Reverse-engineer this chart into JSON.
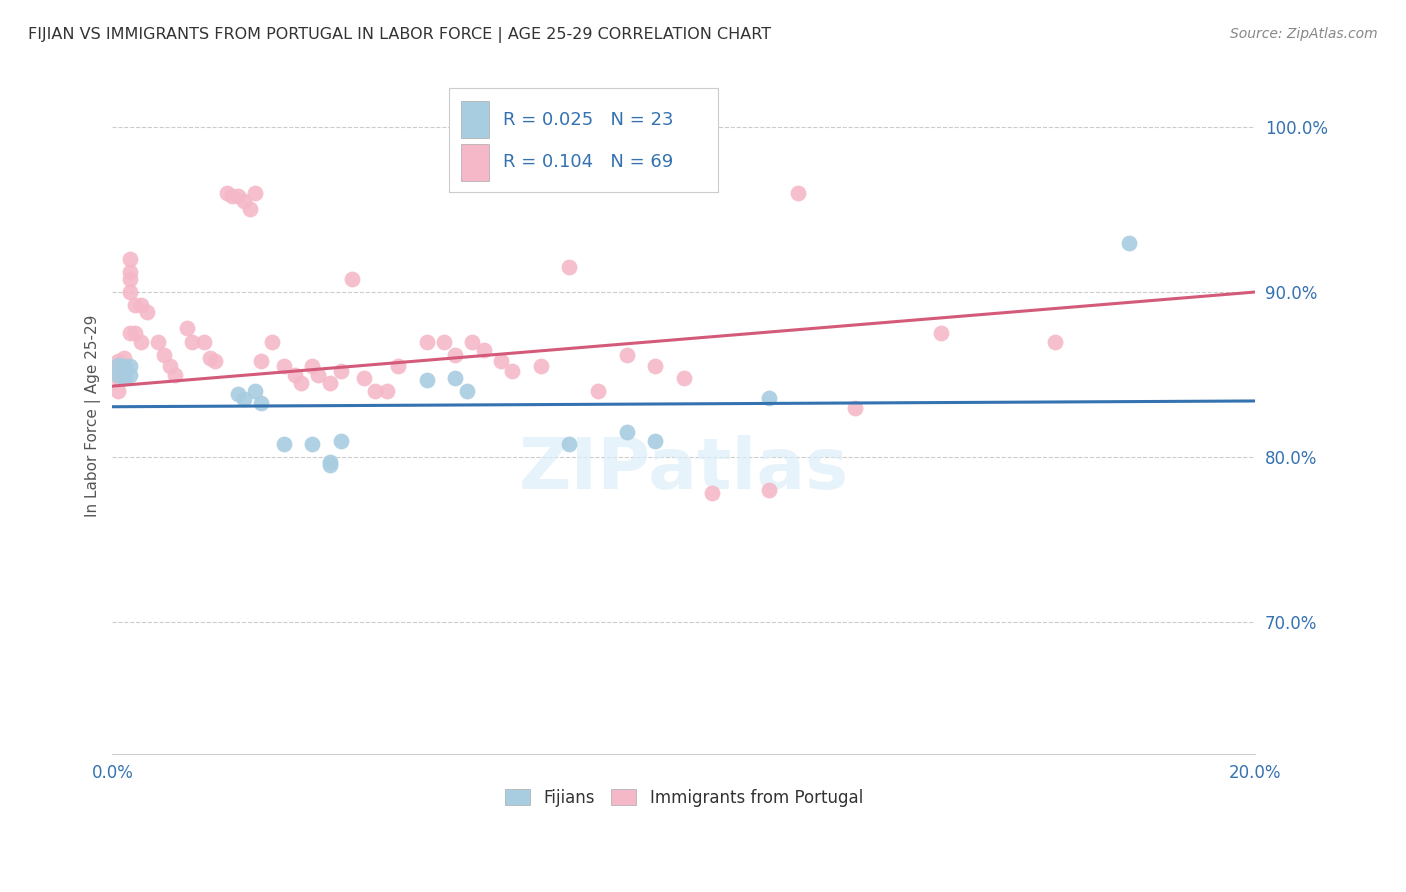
{
  "title": "FIJIAN VS IMMIGRANTS FROM PORTUGAL IN LABOR FORCE | AGE 25-29 CORRELATION CHART",
  "source": "Source: ZipAtlas.com",
  "ylabel": "In Labor Force | Age 25-29",
  "xlim": [
    0.0,
    0.2
  ],
  "ylim": [
    0.62,
    1.03
  ],
  "yticks": [
    0.7,
    0.8,
    0.9,
    1.0
  ],
  "ytick_labels": [
    "70.0%",
    "80.0%",
    "90.0%",
    "100.0%"
  ],
  "xticks": [
    0.0,
    0.02,
    0.04,
    0.06,
    0.08,
    0.1,
    0.12,
    0.14,
    0.16,
    0.18,
    0.2
  ],
  "xtick_labels": [
    "0.0%",
    "",
    "",
    "",
    "",
    "",
    "",
    "",
    "",
    "",
    "20.0%"
  ],
  "blue_R": 0.025,
  "pink_R": 0.104,
  "blue_N": 23,
  "pink_N": 69,
  "blue_color": "#a8cce0",
  "pink_color": "#f4b8c8",
  "blue_line_color": "#3572b0",
  "pink_line_color": "#d45a7a",
  "watermark": "ZIPatlas",
  "background_color": "#ffffff",
  "grid_color": "#cccccc",
  "title_color": "#333333",
  "axis_label_color": "#3572b0",
  "legend_label_color": "#3572b0",
  "blue_scatter_x": [
    0.001,
    0.001,
    0.002,
    0.002,
    0.003,
    0.003,
    0.022,
    0.023,
    0.025,
    0.026,
    0.03,
    0.035,
    0.038,
    0.038,
    0.04,
    0.055,
    0.06,
    0.062,
    0.08,
    0.09,
    0.095,
    0.115,
    0.178
  ],
  "blue_scatter_y": [
    0.856,
    0.85,
    0.855,
    0.848,
    0.855,
    0.85,
    0.838,
    0.835,
    0.84,
    0.833,
    0.808,
    0.808,
    0.797,
    0.795,
    0.81,
    0.847,
    0.848,
    0.84,
    0.808,
    0.815,
    0.81,
    0.836,
    0.93
  ],
  "pink_scatter_x": [
    0.001,
    0.001,
    0.001,
    0.001,
    0.001,
    0.001,
    0.001,
    0.002,
    0.002,
    0.002,
    0.002,
    0.003,
    0.003,
    0.003,
    0.003,
    0.003,
    0.004,
    0.004,
    0.005,
    0.005,
    0.006,
    0.008,
    0.009,
    0.01,
    0.011,
    0.013,
    0.014,
    0.016,
    0.017,
    0.018,
    0.02,
    0.021,
    0.022,
    0.023,
    0.024,
    0.025,
    0.026,
    0.028,
    0.03,
    0.032,
    0.033,
    0.035,
    0.036,
    0.038,
    0.04,
    0.042,
    0.044,
    0.046,
    0.048,
    0.05,
    0.055,
    0.058,
    0.06,
    0.063,
    0.065,
    0.068,
    0.07,
    0.075,
    0.08,
    0.085,
    0.09,
    0.095,
    0.1,
    0.105,
    0.115,
    0.12,
    0.13,
    0.145,
    0.165
  ],
  "pink_scatter_y": [
    0.858,
    0.855,
    0.855,
    0.852,
    0.85,
    0.848,
    0.84,
    0.86,
    0.855,
    0.852,
    0.848,
    0.92,
    0.912,
    0.908,
    0.9,
    0.875,
    0.892,
    0.875,
    0.892,
    0.87,
    0.888,
    0.87,
    0.862,
    0.855,
    0.85,
    0.878,
    0.87,
    0.87,
    0.86,
    0.858,
    0.96,
    0.958,
    0.958,
    0.955,
    0.95,
    0.96,
    0.858,
    0.87,
    0.855,
    0.85,
    0.845,
    0.855,
    0.85,
    0.845,
    0.852,
    0.908,
    0.848,
    0.84,
    0.84,
    0.855,
    0.87,
    0.87,
    0.862,
    0.87,
    0.865,
    0.858,
    0.852,
    0.855,
    0.915,
    0.84,
    0.862,
    0.855,
    0.848,
    0.778,
    0.78,
    0.96,
    0.83,
    0.875,
    0.87
  ],
  "blue_line_x0": 0.0,
  "blue_line_y0": 0.8305,
  "blue_line_x1": 0.2,
  "blue_line_y1": 0.834,
  "pink_line_x0": 0.0,
  "pink_line_y0": 0.843,
  "pink_line_x1": 0.2,
  "pink_line_y1": 0.9
}
